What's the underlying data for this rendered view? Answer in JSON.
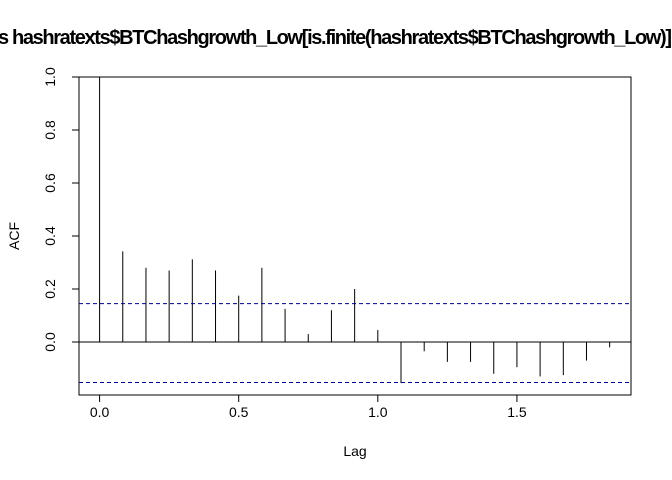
{
  "chart_data": {
    "type": "bar",
    "title": "s  hashratexts$BTChashgrowth_Low[is.finite(hashratexts$BTChashgrowth_Low)]",
    "xlabel": "Lag",
    "ylabel": "ACF",
    "xlim": [
      -0.074,
      1.91
    ],
    "ylim": [
      -0.2,
      1.0
    ],
    "x_ticks": [
      0.0,
      0.5,
      1.0,
      1.5
    ],
    "x_tick_labels": [
      "0.0",
      "0.5",
      "1.0",
      "1.5"
    ],
    "y_ticks": [
      0.0,
      0.2,
      0.4,
      0.6,
      0.8,
      1.0
    ],
    "y_tick_labels": [
      "0.0",
      "0.2",
      "0.4",
      "0.6",
      "0.8",
      "1.0"
    ],
    "confidence_bounds": [
      0.145,
      -0.153
    ],
    "lags": [
      0.0,
      0.0833,
      0.1667,
      0.25,
      0.3333,
      0.4167,
      0.5,
      0.5833,
      0.6667,
      0.75,
      0.8333,
      0.9167,
      1.0,
      1.0833,
      1.1667,
      1.25,
      1.3333,
      1.4167,
      1.5,
      1.5833,
      1.6667,
      1.75,
      1.8333
    ],
    "acf": [
      1.0,
      0.342,
      0.28,
      0.27,
      0.312,
      0.27,
      0.175,
      0.28,
      0.125,
      0.03,
      0.12,
      0.2,
      0.045,
      -0.155,
      -0.035,
      -0.075,
      -0.075,
      -0.12,
      -0.095,
      -0.13,
      -0.125,
      -0.07,
      -0.02
    ],
    "colors": {
      "spike": "#000000",
      "bounds": "#00008b",
      "axis": "#000000"
    },
    "grid": false
  }
}
